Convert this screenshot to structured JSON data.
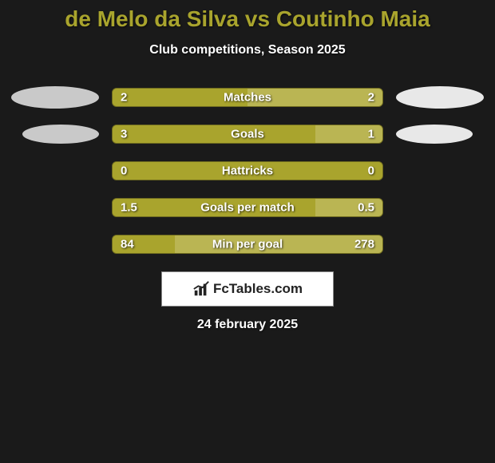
{
  "title": "de Melo da Silva vs Coutinho Maia",
  "subtitle": "Club competitions, Season 2025",
  "date": "24 february 2025",
  "logo_text": "FcTables.com",
  "colors": {
    "background": "#1a1a1a",
    "title": "#a9a42d",
    "left_fill": "#a9a42d",
    "right_fill": "#bab553",
    "border": "#6e6a1f",
    "oval_left": "#c9c9c9",
    "oval_right": "#e8e8e8"
  },
  "rows": [
    {
      "label": "Matches",
      "left_val": "2",
      "right_val": "2",
      "left_pct": 50,
      "right_pct": 50,
      "show_ovals": true,
      "oval_row": 0
    },
    {
      "label": "Goals",
      "left_val": "3",
      "right_val": "1",
      "left_pct": 75,
      "right_pct": 25,
      "show_ovals": true,
      "oval_row": 1
    },
    {
      "label": "Hattricks",
      "left_val": "0",
      "right_val": "0",
      "left_pct": 100,
      "right_pct": 0,
      "show_ovals": false
    },
    {
      "label": "Goals per match",
      "left_val": "1.5",
      "right_val": "0.5",
      "left_pct": 75,
      "right_pct": 25,
      "show_ovals": false
    },
    {
      "label": "Min per goal",
      "left_val": "84",
      "right_val": "278",
      "left_pct": 23,
      "right_pct": 77,
      "show_ovals": false
    }
  ]
}
